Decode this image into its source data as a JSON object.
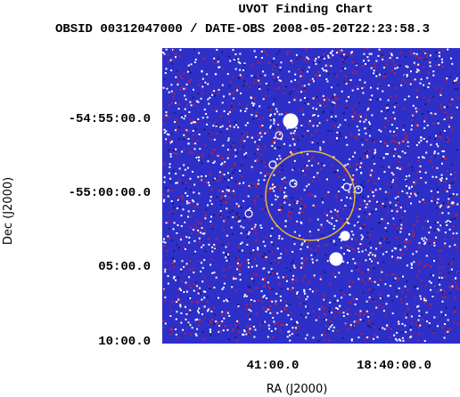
{
  "header": {
    "title": "UVOT Finding Chart",
    "subtitle": "OBSID 00312047000 / DATE-OBS 2008-05-20T22:23:58.3"
  },
  "y_axis": {
    "label": "Dec (J2000)",
    "ticks": [
      "-54:55:00.0",
      "-55:00:00.0",
      "05:00.0",
      "10:00.0"
    ]
  },
  "x_axis": {
    "label": "RA (J2000)",
    "ticks": [
      "41:00.0",
      "18:40:00.0"
    ]
  }
}
